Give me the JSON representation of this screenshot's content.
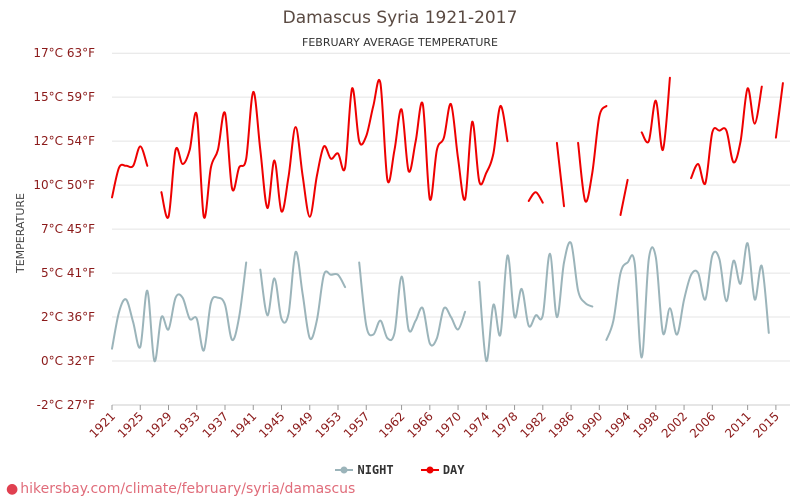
{
  "header": {
    "title": "Damascus Syria 1921-2017",
    "subtitle": "FEBRUARY AVERAGE TEMPERATURE"
  },
  "footer": {
    "url_text": "hikersbay.com/climate/february/syria/damascus"
  },
  "legend": {
    "night": "NIGHT",
    "day": "DAY"
  },
  "colors": {
    "day": "#ee0000",
    "night": "#9bb4ba",
    "grid": "#e4e4e4",
    "label": "#8b1a1a"
  },
  "chart_data": {
    "type": "line",
    "title": "Damascus Syria 1921-2017",
    "subtitle": "FEBRUARY AVERAGE TEMPERATURE",
    "ylabel": "TEMPERATURE",
    "xlim": [
      1921,
      2017
    ],
    "ylim": [
      -2.5,
      17
    ],
    "y_ticks": [
      {
        "value": -2.5,
        "label": "-2°C 27°F"
      },
      {
        "value": 0,
        "label": "0°C 32°F"
      },
      {
        "value": 2.5,
        "label": "2°C 36°F"
      },
      {
        "value": 5,
        "label": "5°C 41°F"
      },
      {
        "value": 7.5,
        "label": "7°C 45°F"
      },
      {
        "value": 10,
        "label": "10°C 50°F"
      },
      {
        "value": 12.5,
        "label": "12°C 54°F"
      },
      {
        "value": 15,
        "label": "15°C 59°F"
      },
      {
        "value": 17.5,
        "label": "17°C 63°F"
      }
    ],
    "x_ticks": [
      {
        "value": 1921,
        "label": "1921"
      },
      {
        "value": 1925,
        "label": "1925"
      },
      {
        "value": 1929,
        "label": "1929"
      },
      {
        "value": 1933,
        "label": "1933"
      },
      {
        "value": 1937,
        "label": "1937"
      },
      {
        "value": 1941,
        "label": "1941"
      },
      {
        "value": 1945,
        "label": "1945"
      },
      {
        "value": 1949,
        "label": "1949"
      },
      {
        "value": 1953,
        "label": "1953"
      },
      {
        "value": 1957,
        "label": "1957"
      },
      {
        "value": 1962,
        "label": "1962"
      },
      {
        "value": 1966,
        "label": "1966"
      },
      {
        "value": 1970,
        "label": "1970"
      },
      {
        "value": 1974,
        "label": "1974"
      },
      {
        "value": 1978,
        "label": "1978"
      },
      {
        "value": 1982,
        "label": "1982"
      },
      {
        "value": 1986,
        "label": "1986"
      },
      {
        "value": 1990,
        "label": "1990"
      },
      {
        "value": 1994,
        "label": "1994"
      },
      {
        "value": 1998,
        "label": "1998"
      },
      {
        "value": 2002,
        "label": "2002"
      },
      {
        "value": 2006,
        "label": "2006"
      },
      {
        "value": 2011,
        "label": "2011"
      },
      {
        "value": 2015,
        "label": "2015"
      }
    ],
    "series": [
      {
        "name": "DAY",
        "segments": [
          [
            [
              1921,
              9.3
            ],
            [
              1922,
              11.0
            ],
            [
              1923,
              11.1
            ],
            [
              1924,
              11.1
            ],
            [
              1925,
              12.2
            ],
            [
              1926,
              11.1
            ]
          ],
          [
            [
              1928,
              9.6
            ],
            [
              1929,
              8.2
            ],
            [
              1930,
              12.0
            ],
            [
              1931,
              11.2
            ],
            [
              1932,
              12.0
            ],
            [
              1933,
              14.0
            ],
            [
              1934,
              8.2
            ],
            [
              1935,
              11.0
            ],
            [
              1936,
              12.0
            ],
            [
              1937,
              14.1
            ],
            [
              1938,
              9.8
            ],
            [
              1939,
              11.0
            ],
            [
              1940,
              11.5
            ],
            [
              1941,
              15.3
            ],
            [
              1942,
              12.0
            ],
            [
              1943,
              8.7
            ],
            [
              1944,
              11.4
            ],
            [
              1945,
              8.5
            ],
            [
              1946,
              10.5
            ],
            [
              1947,
              13.3
            ],
            [
              1948,
              10.5
            ],
            [
              1949,
              8.2
            ],
            [
              1950,
              10.5
            ],
            [
              1951,
              12.2
            ],
            [
              1952,
              11.5
            ],
            [
              1953,
              11.8
            ],
            [
              1954,
              11.0
            ],
            [
              1955,
              15.5
            ],
            [
              1956,
              12.5
            ],
            [
              1957,
              12.8
            ],
            [
              1958,
              14.5
            ],
            [
              1959,
              15.8
            ],
            [
              1960,
              10.3
            ],
            [
              1961,
              12.0
            ],
            [
              1962,
              14.3
            ],
            [
              1963,
              10.8
            ],
            [
              1964,
              12.5
            ],
            [
              1965,
              14.6
            ],
            [
              1966,
              9.2
            ],
            [
              1967,
              12.0
            ],
            [
              1968,
              12.7
            ],
            [
              1969,
              14.6
            ],
            [
              1970,
              11.5
            ],
            [
              1971,
              9.2
            ],
            [
              1972,
              13.6
            ],
            [
              1973,
              10.2
            ],
            [
              1974,
              10.7
            ],
            [
              1975,
              11.8
            ],
            [
              1976,
              14.5
            ],
            [
              1977,
              12.5
            ]
          ],
          [
            [
              1980,
              9.1
            ],
            [
              1981,
              9.6
            ],
            [
              1982,
              9.0
            ]
          ],
          [
            [
              1984,
              12.4
            ],
            [
              1985,
              8.8
            ]
          ],
          [
            [
              1987,
              12.4
            ],
            [
              1988,
              9.1
            ],
            [
              1989,
              10.7
            ],
            [
              1990,
              13.9
            ],
            [
              1991,
              14.5
            ]
          ],
          [
            [
              1993,
              8.3
            ],
            [
              1994,
              10.3
            ]
          ],
          [
            [
              1996,
              13.0
            ],
            [
              1997,
              12.5
            ],
            [
              1998,
              14.8
            ],
            [
              1999,
              12.0
            ],
            [
              2000,
              16.1
            ]
          ],
          [
            [
              2003,
              10.4
            ],
            [
              2004,
              11.2
            ],
            [
              2005,
              10.1
            ],
            [
              2006,
              13.0
            ],
            [
              2007,
              13.1
            ],
            [
              2008,
              13.1
            ],
            [
              2009,
              11.3
            ],
            [
              2010,
              12.5
            ],
            [
              2011,
              15.5
            ],
            [
              2012,
              13.5
            ],
            [
              2013,
              15.6
            ]
          ],
          [
            [
              2015,
              12.7
            ],
            [
              2016,
              15.8
            ]
          ]
        ]
      },
      {
        "name": "NIGHT",
        "segments": [
          [
            [
              1921,
              0.7
            ],
            [
              1922,
              2.8
            ],
            [
              1923,
              3.5
            ],
            [
              1924,
              2.2
            ],
            [
              1925,
              0.8
            ],
            [
              1926,
              4.0
            ],
            [
              1927,
              0.0
            ],
            [
              1928,
              2.5
            ],
            [
              1929,
              1.8
            ],
            [
              1930,
              3.6
            ],
            [
              1931,
              3.6
            ],
            [
              1932,
              2.4
            ],
            [
              1933,
              2.4
            ],
            [
              1934,
              0.6
            ],
            [
              1935,
              3.3
            ],
            [
              1936,
              3.6
            ],
            [
              1937,
              3.2
            ],
            [
              1938,
              1.2
            ],
            [
              1939,
              2.5
            ],
            [
              1940,
              5.6
            ]
          ],
          [
            [
              1942,
              5.2
            ],
            [
              1943,
              2.6
            ],
            [
              1944,
              4.7
            ],
            [
              1945,
              2.4
            ],
            [
              1946,
              2.7
            ],
            [
              1947,
              6.2
            ],
            [
              1948,
              3.8
            ],
            [
              1949,
              1.3
            ],
            [
              1950,
              2.3
            ],
            [
              1951,
              4.9
            ],
            [
              1952,
              4.9
            ],
            [
              1953,
              4.9
            ],
            [
              1954,
              4.2
            ]
          ],
          [
            [
              1956,
              5.6
            ],
            [
              1957,
              2.0
            ],
            [
              1958,
              1.5
            ],
            [
              1959,
              2.3
            ],
            [
              1960,
              1.3
            ],
            [
              1961,
              1.6
            ],
            [
              1962,
              4.8
            ],
            [
              1963,
              1.8
            ],
            [
              1964,
              2.3
            ],
            [
              1965,
              3.0
            ],
            [
              1966,
              1.0
            ],
            [
              1967,
              1.3
            ],
            [
              1968,
              3.0
            ],
            [
              1969,
              2.5
            ],
            [
              1970,
              1.8
            ],
            [
              1971,
              2.8
            ]
          ],
          [
            [
              1973,
              4.5
            ],
            [
              1974,
              0.0
            ],
            [
              1975,
              3.2
            ],
            [
              1976,
              1.5
            ],
            [
              1977,
              6.0
            ],
            [
              1978,
              2.5
            ],
            [
              1979,
              4.1
            ],
            [
              1980,
              2.0
            ],
            [
              1981,
              2.6
            ],
            [
              1982,
              2.6
            ],
            [
              1983,
              6.1
            ],
            [
              1984,
              2.5
            ],
            [
              1985,
              5.6
            ],
            [
              1986,
              6.7
            ],
            [
              1987,
              4.0
            ],
            [
              1988,
              3.3
            ],
            [
              1989,
              3.1
            ]
          ],
          [
            [
              1991,
              1.2
            ],
            [
              1992,
              2.3
            ],
            [
              1993,
              5.0
            ],
            [
              1994,
              5.6
            ],
            [
              1995,
              5.6
            ],
            [
              1996,
              0.2
            ],
            [
              1997,
              5.8
            ],
            [
              1998,
              5.9
            ],
            [
              1999,
              1.6
            ],
            [
              2000,
              3.0
            ],
            [
              2001,
              1.5
            ],
            [
              2002,
              3.5
            ],
            [
              2003,
              4.9
            ],
            [
              2004,
              5.0
            ],
            [
              2005,
              3.5
            ],
            [
              2006,
              6.0
            ],
            [
              2007,
              5.8
            ],
            [
              2008,
              3.4
            ],
            [
              2009,
              5.7
            ],
            [
              2010,
              4.4
            ],
            [
              2011,
              6.7
            ],
            [
              2012,
              3.5
            ],
            [
              2013,
              5.4
            ],
            [
              2014,
              1.6
            ]
          ]
        ]
      }
    ]
  }
}
